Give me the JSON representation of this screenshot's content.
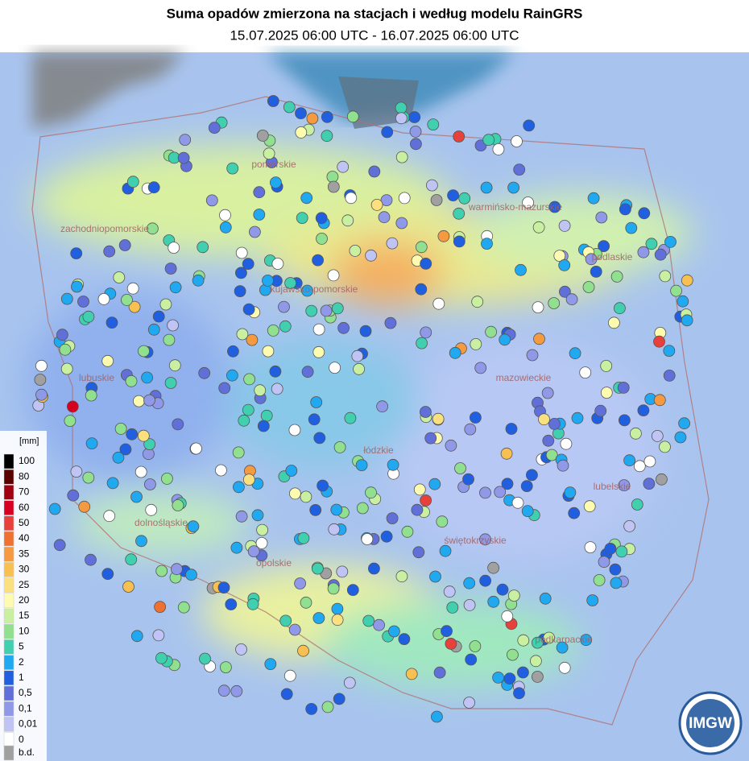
{
  "header": {
    "title": "Suma opadów zmierzona na stacjach i według modelu RainGRS",
    "subtitle": "15.07.2025 06:00 UTC - 16.07.2025 06:00 UTC"
  },
  "legend": {
    "unit": "[mm]",
    "items": [
      {
        "label": "100",
        "color": "#000000"
      },
      {
        "label": "80",
        "color": "#5a0000"
      },
      {
        "label": "70",
        "color": "#a00010"
      },
      {
        "label": "60",
        "color": "#d80020"
      },
      {
        "label": "50",
        "color": "#e8403a"
      },
      {
        "label": "40",
        "color": "#f07030"
      },
      {
        "label": "35",
        "color": "#f59a40"
      },
      {
        "label": "30",
        "color": "#f8c050"
      },
      {
        "label": "25",
        "color": "#fbe080"
      },
      {
        "label": "20",
        "color": "#fdfbb0"
      },
      {
        "label": "15",
        "color": "#c8f0a0"
      },
      {
        "label": "10",
        "color": "#90e090"
      },
      {
        "label": "5",
        "color": "#40d0b0"
      },
      {
        "label": "2",
        "color": "#20a8f0"
      },
      {
        "label": "1",
        "color": "#2060e0"
      },
      {
        "label": "0,5",
        "color": "#6070d8"
      },
      {
        "label": "0,1",
        "color": "#9098e8"
      },
      {
        "label": "0,01",
        "color": "#c0c4f4"
      },
      {
        "label": "0",
        "color": "#ffffff"
      },
      {
        "label": "b.d.",
        "color": "#a0a0a0"
      }
    ]
  },
  "regions": [
    "pomorskie",
    "zachodniopomorskie",
    "warmińsko-mazurskie",
    "podlaskie",
    "kujawsko-pomorskie",
    "lubuskie",
    "mazowieckie",
    "łódzkie",
    "lubelskie",
    "dolnośląskie",
    "opolskie",
    "świętokrzyskie",
    "podkarpackie"
  ],
  "logo": "IMGW"
}
